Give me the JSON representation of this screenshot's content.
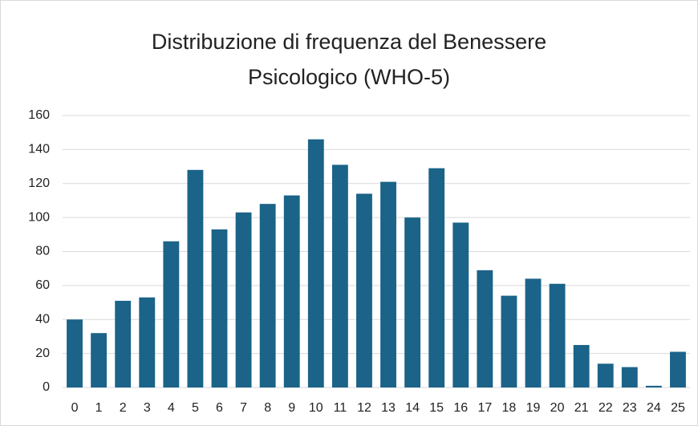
{
  "chart_data": {
    "type": "bar",
    "title": "Distribuzione di frequenza del Benessere Psicologico (WHO-5)",
    "categories": [
      "0",
      "1",
      "2",
      "3",
      "4",
      "5",
      "6",
      "7",
      "8",
      "9",
      "10",
      "11",
      "12",
      "13",
      "14",
      "15",
      "16",
      "17",
      "18",
      "19",
      "20",
      "21",
      "22",
      "23",
      "24",
      "25"
    ],
    "values": [
      40,
      32,
      51,
      53,
      86,
      128,
      93,
      103,
      108,
      113,
      146,
      131,
      114,
      121,
      100,
      129,
      97,
      69,
      54,
      64,
      61,
      25,
      14,
      12,
      1,
      21
    ],
    "color": "#1b6388",
    "ylim": [
      0,
      160
    ],
    "yticks": [
      0,
      20,
      40,
      60,
      80,
      100,
      120,
      140,
      160
    ],
    "grid": true
  }
}
